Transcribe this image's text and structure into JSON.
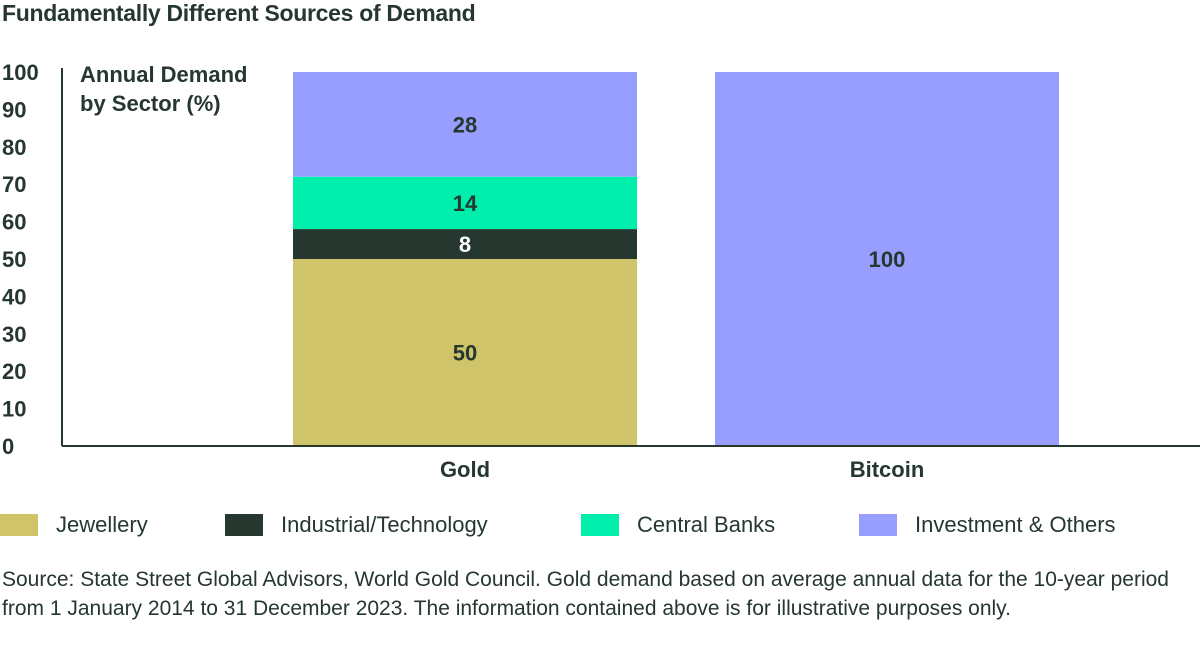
{
  "title": "Fundamentally Different Sources of Demand",
  "source_note": "Source: State Street Global Advisors, World Gold Council. Gold demand based on average annual data for the 10-year period from 1 January 2014 to 31 December 2023. The information contained above is for illustrative purposes only.",
  "colors": {
    "jewellery": "#d0c46b",
    "industrial": "#25372f",
    "central_banks": "#00eeac",
    "investment": "#979efe",
    "text": "#25372f"
  },
  "legend": [
    {
      "label": "Jewellery",
      "color": "#d0c46b"
    },
    {
      "label": "Industrial/Technology",
      "color": "#25372f"
    },
    {
      "label": "Central Banks",
      "color": "#00eeac"
    },
    {
      "label": "Investment & Others",
      "color": "#979efe"
    }
  ],
  "chart_data": {
    "type": "bar",
    "stacked": true,
    "title": "Fundamentally Different Sources of Demand",
    "ylabel": "Annual Demand by Sector (%)",
    "ylabel_lines": [
      "Annual Demand",
      "by Sector (%)"
    ],
    "xlabel": "",
    "ylim": [
      0,
      100
    ],
    "yticks": [
      0,
      10,
      20,
      30,
      40,
      50,
      60,
      70,
      80,
      90,
      100
    ],
    "categories": [
      "Gold",
      "Bitcoin"
    ],
    "series": [
      {
        "name": "Jewellery",
        "color": "#d0c46b",
        "values": [
          50,
          0
        ],
        "label_color": "#25372f"
      },
      {
        "name": "Industrial/Technology",
        "color": "#25372f",
        "values": [
          8,
          0
        ],
        "label_color": "#ffffff"
      },
      {
        "name": "Central Banks",
        "color": "#00eeac",
        "values": [
          14,
          0
        ],
        "label_color": "#25372f"
      },
      {
        "name": "Investment & Others",
        "color": "#979efe",
        "values": [
          28,
          100
        ],
        "label_color": "#25372f"
      }
    ],
    "grid": false,
    "legend_position": "bottom"
  }
}
